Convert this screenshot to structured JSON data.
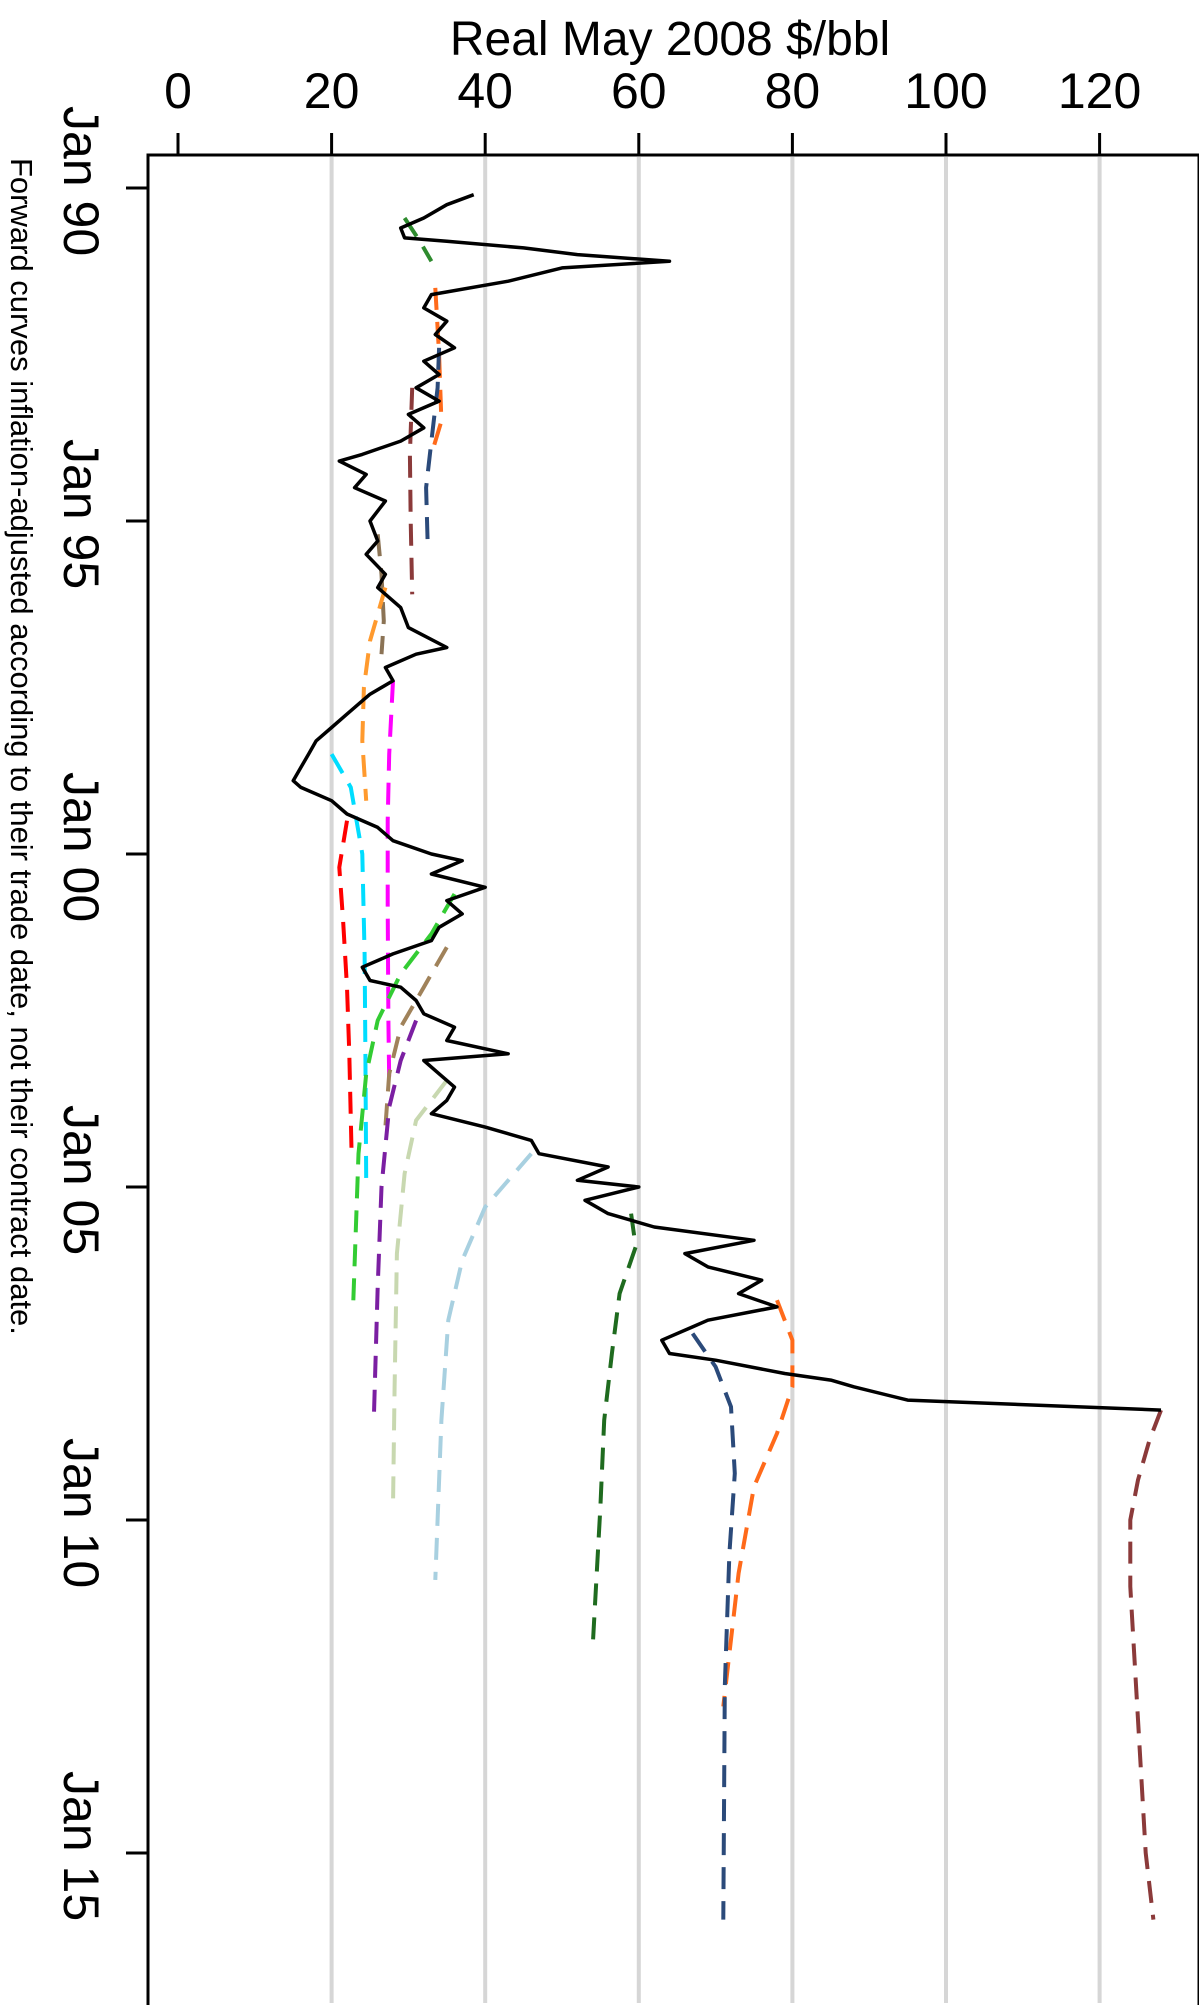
{
  "chart_data": {
    "type": "line",
    "orientation": "rotated-90-clockwise",
    "title": "",
    "ylabel": "Real May 2008 $/bbl",
    "xlabel": "",
    "note": "Forward curves inflation-adjusted according to their trade date, not their contract date.",
    "ylim": [
      0,
      120
    ],
    "xlim": [
      1990.0,
      2016.2
    ],
    "grid": true,
    "y_ticks": [
      0,
      20,
      40,
      60,
      80,
      100,
      120
    ],
    "y_tick_labels": [
      "0",
      "20",
      "40",
      "60",
      "80",
      "100",
      "120"
    ],
    "x_ticks": [
      1990,
      1995,
      2000,
      2005,
      2010,
      2015
    ],
    "x_tick_labels": [
      "Jan 90",
      "Jan 95",
      "Jan 00",
      "Jan 05",
      "Jan 10",
      "Jan 15"
    ],
    "spot": {
      "name": "",
      "color": "#000000",
      "x": [
        1990.1,
        1990.25,
        1990.45,
        1990.6,
        1990.75,
        1990.8,
        1990.9,
        1991.0,
        1991.1,
        1991.2,
        1991.4,
        1991.6,
        1991.8,
        1992.0,
        1992.2,
        1992.4,
        1992.6,
        1992.8,
        1993.0,
        1993.2,
        1993.4,
        1993.6,
        1993.8,
        1994.0,
        1994.1,
        1994.3,
        1994.5,
        1994.7,
        1995.0,
        1995.3,
        1995.5,
        1995.8,
        1996.0,
        1996.3,
        1996.6,
        1996.9,
        1997.0,
        1997.2,
        1997.4,
        1997.6,
        1997.9,
        1998.1,
        1998.3,
        1998.5,
        1998.7,
        1998.9,
        1999.0,
        1999.2,
        1999.4,
        1999.6,
        1999.8,
        2000.0,
        2000.1,
        2000.3,
        2000.5,
        2000.7,
        2000.9,
        2001.1,
        2001.3,
        2001.5,
        2001.7,
        2001.9,
        2002.0,
        2002.2,
        2002.4,
        2002.6,
        2002.8,
        2003.0,
        2003.1,
        2003.3,
        2003.5,
        2003.7,
        2003.9,
        2004.1,
        2004.3,
        2004.5,
        2004.7,
        2004.9,
        2005.0,
        2005.2,
        2005.4,
        2005.6,
        2005.8,
        2006.0,
        2006.2,
        2006.4,
        2006.6,
        2006.8,
        2007.0,
        2007.1,
        2007.3,
        2007.5,
        2007.6,
        2007.8,
        2007.9,
        2008.0,
        2008.2,
        2008.35
      ],
      "y": [
        38.5,
        35,
        32,
        29,
        29.5,
        35,
        45,
        52,
        64,
        50,
        43,
        33,
        32,
        35,
        33.5,
        36,
        32,
        34,
        31,
        34,
        30,
        32,
        29,
        24,
        21,
        24.5,
        23,
        27,
        25,
        26,
        24.5,
        27,
        26,
        29,
        30,
        35,
        31,
        27,
        28,
        25,
        22,
        20,
        18,
        17,
        16,
        15,
        16,
        20,
        22,
        26,
        28,
        33,
        37,
        33,
        40,
        35,
        37,
        34,
        33,
        28,
        24,
        25,
        29,
        31,
        32,
        36,
        35,
        43,
        32,
        34,
        36,
        35,
        33,
        40,
        46,
        47,
        56,
        52,
        60,
        53,
        56,
        62,
        75,
        66,
        69,
        76,
        73,
        78,
        69,
        67,
        63,
        64,
        70,
        79,
        85,
        88,
        95,
        128
      ]
    },
    "series": [
      {
        "name": "",
        "color": "#2e8b2e",
        "x": [
          1990.45,
          1990.8,
          1991.1
        ],
        "y": [
          29.5,
          31.5,
          33
        ]
      },
      {
        "name": "",
        "color": "#ff6a1a",
        "x": [
          1991.5,
          1992.5,
          1993.5,
          1994.0
        ],
        "y": [
          33.5,
          34,
          34.3,
          33
        ]
      },
      {
        "name": "",
        "color": "#2b4a7a",
        "x": [
          1992.4,
          1993.0,
          1993.8,
          1994.5,
          1995.3
        ],
        "y": [
          34,
          33.8,
          33,
          32.3,
          32.5
        ]
      },
      {
        "name": "",
        "color": "#8b3a3a",
        "x": [
          1993.0,
          1994.0,
          1995.0,
          1996.1
        ],
        "y": [
          30.5,
          30.2,
          30.3,
          30.5
        ]
      },
      {
        "name": "",
        "color": "#8b7355",
        "x": [
          1995.2,
          1995.8,
          1996.5,
          1997.0
        ],
        "y": [
          26,
          26.5,
          26.8,
          26.5
        ]
      },
      {
        "name": "",
        "color": "#ff9a2e",
        "x": [
          1996.0,
          1996.8,
          1997.5,
          1998.3,
          1999.2
        ],
        "y": [
          27,
          25,
          24.2,
          24,
          24.5
        ]
      },
      {
        "name": "",
        "color": "#ff00ff",
        "x": [
          1997.4,
          1998.5,
          1999.5,
          2000.8,
          2002.5,
          2003.4
        ],
        "y": [
          28,
          27.5,
          27.3,
          27.3,
          27.4,
          27.5
        ]
      },
      {
        "name": "",
        "color": "#00ddff",
        "x": [
          1998.5,
          1999.0,
          2000.0,
          2001.5,
          2003.0,
          2004.9
        ],
        "y": [
          20,
          22.5,
          24,
          24.3,
          24.4,
          24.5
        ]
      },
      {
        "name": "",
        "color": "#ff0000",
        "x": [
          1999.5,
          2000.2,
          2001.0,
          2002.0,
          2003.0,
          2004.5
        ],
        "y": [
          22,
          21,
          21.5,
          22,
          22.3,
          22.6
        ]
      },
      {
        "name": "",
        "color": "#33cc33",
        "x": [
          2000.6,
          2001.2,
          2001.8,
          2002.5,
          2003.3,
          2004.5,
          2006.8
        ],
        "y": [
          36,
          33,
          29,
          26,
          24.5,
          23.5,
          22.8
        ]
      },
      {
        "name": "",
        "color": "#a0825a",
        "x": [
          2001.4,
          2002.0,
          2002.6,
          2003.3,
          2004.1
        ],
        "y": [
          35,
          32,
          29,
          27.5,
          27
        ]
      },
      {
        "name": "",
        "color": "#7b1fa2",
        "x": [
          2002.5,
          2003.1,
          2003.8,
          2005.0,
          2006.5,
          2008.5
        ],
        "y": [
          31,
          29,
          27.5,
          26.5,
          26,
          25.5
        ]
      },
      {
        "name": "",
        "color": "#c8d8b0",
        "x": [
          2003.4,
          2004.0,
          2004.8,
          2006.0,
          2008.0,
          2009.8
        ],
        "y": [
          35,
          31,
          29.5,
          28.5,
          28.2,
          28
        ]
      },
      {
        "name": "",
        "color": "#a8d0e0",
        "x": [
          2004.5,
          2005.3,
          2006.1,
          2007.0,
          2008.5,
          2010.9
        ],
        "y": [
          46,
          40,
          37,
          35.2,
          34.3,
          33.5
        ]
      },
      {
        "name": "",
        "color": "#1f6b1f",
        "x": [
          2005.4,
          2005.9,
          2006.6,
          2007.5,
          2008.5,
          2009.8,
          2011.9
        ],
        "y": [
          59,
          59.6,
          57.5,
          56.5,
          55.5,
          55,
          54
        ]
      },
      {
        "name": "",
        "color": "#ff6a1a",
        "x": [
          2006.7,
          2007.3,
          2008.0,
          2008.7,
          2009.5,
          2010.8,
          2012.8
        ],
        "y": [
          78,
          80,
          80,
          78,
          75,
          73,
          71
        ]
      },
      {
        "name": "",
        "color": "#2b4a7a",
        "x": [
          2007.2,
          2007.7,
          2008.3,
          2009.3,
          2010.5,
          2012.5,
          2016.0
        ],
        "y": [
          67,
          70,
          72,
          72.5,
          71.8,
          71.2,
          71
        ]
      },
      {
        "name": "",
        "color": "#8b3a3a",
        "x": [
          2008.35,
          2008.8,
          2009.4,
          2010.0,
          2011.0,
          2013.0,
          2015.0,
          2016.0
        ],
        "y": [
          128,
          126.5,
          125,
          124,
          124,
          125,
          126,
          127
        ]
      }
    ]
  }
}
